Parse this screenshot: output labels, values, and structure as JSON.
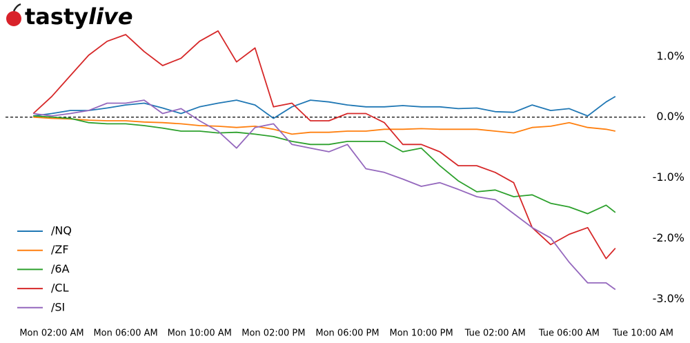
{
  "logo": [
    "tasty",
    "live"
  ],
  "chart_data": {
    "type": "line",
    "x": [
      1,
      2,
      3,
      4,
      5,
      6,
      7,
      8,
      9,
      10,
      11,
      12,
      13,
      14,
      15,
      16,
      17,
      18,
      19,
      20,
      21,
      22,
      23,
      24,
      25,
      26,
      27,
      28,
      29,
      30,
      31,
      32,
      32.5
    ],
    "xlim": [
      0,
      34
    ],
    "xticks": [
      {
        "value": 2,
        "label": "Mon 02:00 AM"
      },
      {
        "value": 6,
        "label": "Mon 06:00 AM"
      },
      {
        "value": 10,
        "label": "Mon 10:00 AM"
      },
      {
        "value": 14,
        "label": "Mon 02:00 PM"
      },
      {
        "value": 18,
        "label": "Mon 06:00 PM"
      },
      {
        "value": 22,
        "label": "Mon 10:00 PM"
      },
      {
        "value": 26,
        "label": "Tue 02:00 AM"
      },
      {
        "value": 30,
        "label": "Tue 06:00 AM"
      },
      {
        "value": 34,
        "label": "Tue 10:00 AM"
      }
    ],
    "ylim": [
      -3.3,
      1.6
    ],
    "yticks": [
      {
        "value": 1,
        "label": "1.0%"
      },
      {
        "value": 0,
        "label": "0.0%"
      },
      {
        "value": -1,
        "label": "-1.0%"
      },
      {
        "value": -2,
        "label": "-2.0%"
      },
      {
        "value": -3,
        "label": "-3.0%"
      }
    ],
    "zero_line": true,
    "legend": "lower left",
    "series": [
      {
        "name": "/NQ",
        "color": "#1f77b4",
        "values": [
          0.02,
          0.06,
          0.11,
          0.11,
          0.15,
          0.2,
          0.23,
          0.15,
          0.06,
          0.17,
          0.23,
          0.28,
          0.2,
          -0.02,
          0.17,
          0.28,
          0.25,
          0.2,
          0.17,
          0.17,
          0.19,
          0.17,
          0.17,
          0.14,
          0.15,
          0.09,
          0.08,
          0.2,
          0.11,
          0.14,
          0.02,
          0.25,
          0.34
        ]
      },
      {
        "name": "/ZF",
        "color": "#ff7f0e",
        "values": [
          0,
          -0.02,
          -0.03,
          -0.05,
          -0.06,
          -0.06,
          -0.08,
          -0.09,
          -0.11,
          -0.14,
          -0.15,
          -0.17,
          -0.15,
          -0.2,
          -0.28,
          -0.25,
          -0.25,
          -0.23,
          -0.23,
          -0.2,
          -0.2,
          -0.19,
          -0.2,
          -0.2,
          -0.2,
          -0.23,
          -0.26,
          -0.17,
          -0.15,
          -0.09,
          -0.17,
          -0.2,
          -0.23
        ]
      },
      {
        "name": "/6A",
        "color": "#2ca02c",
        "values": [
          0.02,
          0,
          -0.02,
          -0.09,
          -0.11,
          -0.11,
          -0.14,
          -0.18,
          -0.23,
          -0.23,
          -0.26,
          -0.25,
          -0.28,
          -0.32,
          -0.4,
          -0.45,
          -0.45,
          -0.4,
          -0.4,
          -0.4,
          -0.57,
          -0.51,
          -0.8,
          -1.05,
          -1.23,
          -1.2,
          -1.31,
          -1.28,
          -1.42,
          -1.48,
          -1.59,
          -1.45,
          -1.57
        ]
      },
      {
        "name": "/CL",
        "color": "#d62728",
        "values": [
          0.06,
          0.34,
          0.68,
          1.02,
          1.25,
          1.36,
          1.08,
          0.85,
          0.97,
          1.25,
          1.42,
          0.91,
          1.14,
          0.17,
          0.23,
          -0.06,
          -0.06,
          0.06,
          0.06,
          -0.09,
          -0.45,
          -0.45,
          -0.57,
          -0.8,
          -0.8,
          -0.91,
          -1.08,
          -1.82,
          -2.1,
          -1.93,
          -1.82,
          -2.33,
          -2.16
        ]
      },
      {
        "name": "/SI",
        "color": "#9467bd",
        "values": [
          0.06,
          0.02,
          0.06,
          0.11,
          0.23,
          0.23,
          0.28,
          0.06,
          0.14,
          -0.06,
          -0.23,
          -0.51,
          -0.17,
          -0.11,
          -0.45,
          -0.51,
          -0.57,
          -0.45,
          -0.85,
          -0.91,
          -1.02,
          -1.14,
          -1.08,
          -1.19,
          -1.31,
          -1.36,
          -1.59,
          -1.82,
          -1.99,
          -2.39,
          -2.73,
          -2.73,
          -2.84
        ]
      }
    ]
  }
}
